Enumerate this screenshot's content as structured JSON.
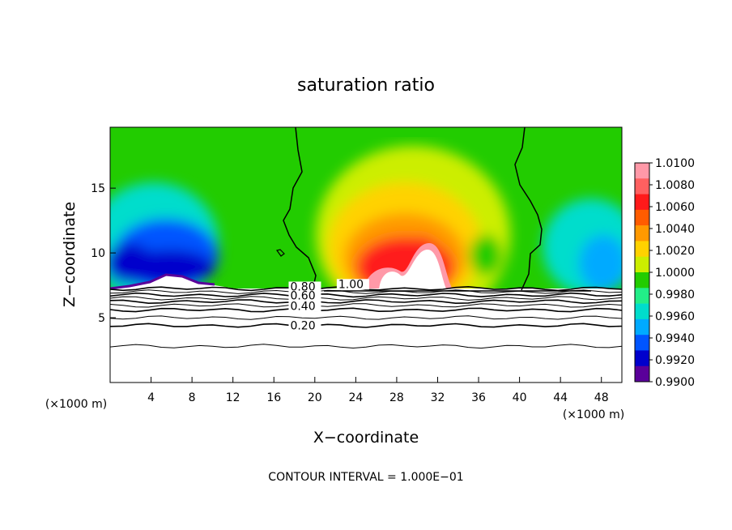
{
  "chart_data": {
    "type": "heatmap",
    "title": "saturation ratio",
    "xlabel": "X−coordinate",
    "ylabel": "Z−coordinate",
    "x_unit_left": "(×1000 m)",
    "x_unit_right": "(×1000 m)",
    "xlim": [
      0,
      50
    ],
    "ylim": [
      0,
      19.7
    ],
    "x_ticks": [
      4,
      8,
      12,
      16,
      20,
      24,
      28,
      32,
      36,
      40,
      44,
      48
    ],
    "y_ticks": [
      5,
      10,
      15
    ],
    "footer": "CONTOUR INTERVAL = 1.000E−01",
    "colorbar": {
      "levels": [
        "1.0100",
        "1.0080",
        "1.0060",
        "1.0040",
        "1.0020",
        "1.0000",
        "0.9980",
        "0.9960",
        "0.9940",
        "0.9920",
        "0.9900"
      ],
      "colors": [
        "#ff99a8",
        "#ff6060",
        "#ff1a1a",
        "#ff5c00",
        "#ff9900",
        "#ffd200",
        "#ccee00",
        "#22cc00",
        "#22ee88",
        "#00ddcc",
        "#00aaff",
        "#0055ff",
        "#0000cc",
        "#5a009a"
      ]
    },
    "contour_labels": [
      {
        "text": "1.00",
        "x": 22.3,
        "y": 7.3
      },
      {
        "text": "0.80",
        "x": 17.6,
        "y": 7.1
      },
      {
        "text": "0.60",
        "x": 17.6,
        "y": 6.4
      },
      {
        "text": "0.40",
        "x": 17.6,
        "y": 5.6
      },
      {
        "text": "0.20",
        "x": 17.6,
        "y": 4.1
      }
    ],
    "lower_contours": [
      {
        "level": 1.0,
        "z": 7.25
      },
      {
        "level": 0.9,
        "z": 7.0
      },
      {
        "level": 0.8,
        "z": 6.75
      },
      {
        "level": 0.7,
        "z": 6.5
      },
      {
        "level": 0.6,
        "z": 6.25
      },
      {
        "level": 0.5,
        "z": 5.95
      },
      {
        "level": 0.4,
        "z": 5.6
      },
      {
        "level": 0.3,
        "z": 5.0
      },
      {
        "level": 0.2,
        "z": 4.4
      },
      {
        "level": 0.1,
        "z": 2.8
      }
    ]
  }
}
